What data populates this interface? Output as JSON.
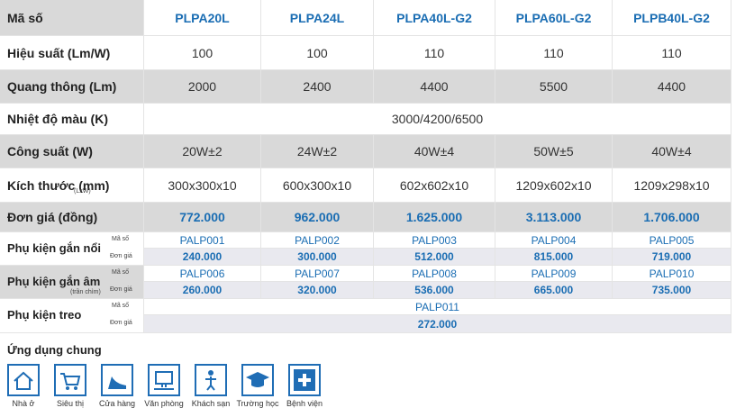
{
  "table": {
    "header": {
      "label": "Mã số",
      "products": [
        "PLPA20L",
        "PLPA24L",
        "PLPA40L-G2",
        "PLPA60L-G2",
        "PLPB40L-G2"
      ]
    },
    "rows": [
      {
        "label": "Hiệu suất (Lm/W)",
        "values": [
          "100",
          "100",
          "110",
          "110",
          "110"
        ]
      },
      {
        "label": "Quang thông (Lm)",
        "values": [
          "2000",
          "2400",
          "4400",
          "5500",
          "4400"
        ]
      },
      {
        "label": "Nhiệt độ màu (K)",
        "values": [
          "3000/4200/6500"
        ]
      },
      {
        "label": "Công suất (W)",
        "values": [
          "20W±2",
          "24W±2",
          "40W±4",
          "50W±5",
          "40W±4"
        ]
      },
      {
        "label": "Kích thước (mm)",
        "note": "(LxW)",
        "values": [
          "300x300x10",
          "600x300x10",
          "602x602x10",
          "1209x602x10",
          "1209x298x10"
        ]
      },
      {
        "label": "Đơn giá (đồng)",
        "values": [
          "772.000",
          "962.000",
          "1.625.000",
          "3.113.000",
          "1.706.000"
        ]
      }
    ],
    "accessories": [
      {
        "label": "Phụ kiện gắn nổi",
        "code_label": "Mã số",
        "price_label": "Đơn giá",
        "codes": [
          "PALP001",
          "PALP002",
          "PALP003",
          "PALP004",
          "PALP005"
        ],
        "prices": [
          "240.000",
          "300.000",
          "512.000",
          "815.000",
          "719.000"
        ]
      },
      {
        "label": "Phụ kiện gắn âm",
        "note": "(trần chìm)",
        "code_label": "Mã số",
        "price_label": "Đơn giá",
        "codes": [
          "PALP006",
          "PALP007",
          "PALP008",
          "PALP009",
          "PALP010"
        ],
        "prices": [
          "260.000",
          "320.000",
          "536.000",
          "665.000",
          "735.000"
        ]
      },
      {
        "label": "Phụ kiện treo",
        "code_label": "Mã số",
        "price_label": "Đơn giá",
        "codes": [
          "PALP011"
        ],
        "prices": [
          "272.000"
        ]
      }
    ]
  },
  "applications": {
    "title": "Ứng dụng chung",
    "items": [
      "Nhà ở",
      "Siêu thị",
      "Cửa hàng",
      "Văn phòng",
      "Khách sạn",
      "Trường học",
      "Bệnh viện"
    ]
  }
}
